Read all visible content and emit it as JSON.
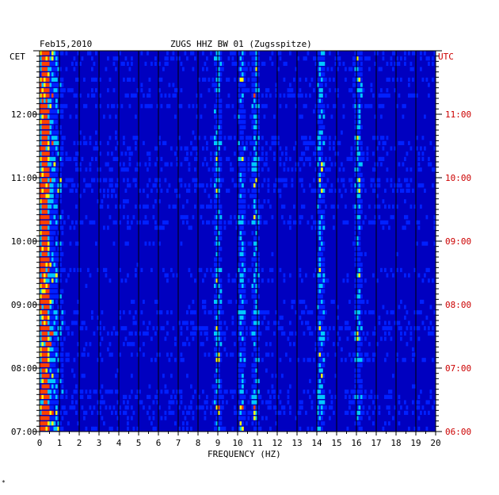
{
  "chart_data": {
    "type": "heatmap",
    "title_date": "Feb15,2010",
    "title_station": "ZUGS HHZ BW 01 (Zugsspitze)",
    "xlabel": "FREQUENCY (HZ)",
    "left_axis_label": "CET",
    "right_axis_label": "UTC",
    "x_ticks": [
      "0",
      "1",
      "2",
      "3",
      "4",
      "5",
      "6",
      "7",
      "8",
      "9",
      "10",
      "11",
      "12",
      "13",
      "14",
      "15",
      "16",
      "17",
      "18",
      "19",
      "20"
    ],
    "xlim": [
      0,
      20
    ],
    "cet_ticks": [
      "12:00",
      "11:00",
      "10:00",
      "09:00",
      "08:00",
      "07:00"
    ],
    "utc_ticks": [
      "11:00",
      "10:00",
      "09:00",
      "08:00",
      "07:00",
      "06:00"
    ],
    "time_range_cet": [
      "07:00",
      "13:00"
    ],
    "rows_per_hour": 12,
    "bright_frequency_bands_hz": [
      0.3,
      9.0,
      10.2,
      10.9,
      14.2,
      16.1
    ],
    "colors": {
      "background": "#0000c0",
      "low": "#0020ff",
      "mid": "#00c8ff",
      "high": "#ffff00",
      "peak": "#ff4000",
      "utc_text": "#cc0000",
      "grid": "#000000"
    }
  },
  "footnote": "*"
}
